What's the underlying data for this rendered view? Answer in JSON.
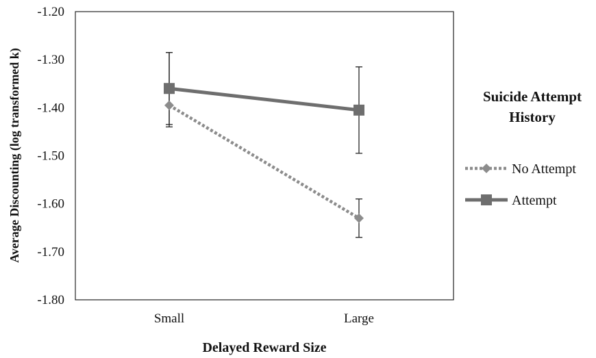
{
  "chart_data": {
    "type": "line",
    "title": "",
    "xlabel": "Delayed Reward Size",
    "ylabel": "Average Discounting (log transformed k)",
    "categories": [
      "Small",
      "Large"
    ],
    "ylim": [
      -1.8,
      -1.2
    ],
    "yticks": [
      "-1.20",
      "-1.30",
      "-1.40",
      "-1.50",
      "-1.60",
      "-1.70",
      "-1.80"
    ],
    "ytick_values": [
      -1.2,
      -1.3,
      -1.4,
      -1.5,
      -1.6,
      -1.7,
      -1.8
    ],
    "grid": false,
    "legend": {
      "title_lines": [
        "Suicide Attempt",
        "History"
      ],
      "placement": "right"
    },
    "series": [
      {
        "name": "No Attempt",
        "values": [
          -1.395,
          -1.63
        ],
        "error_low": [
          -1.44,
          -1.67
        ],
        "error_high": [
          -1.285,
          -1.59
        ],
        "style": "dotted",
        "marker": "diamond",
        "color": "#8c8c8c"
      },
      {
        "name": "Attempt",
        "values": [
          -1.36,
          -1.405
        ],
        "error_low": [
          -1.435,
          -1.495
        ],
        "error_high": [
          -1.285,
          -1.315
        ],
        "style": "solid",
        "marker": "square",
        "color": "#6e6e6e"
      }
    ]
  }
}
